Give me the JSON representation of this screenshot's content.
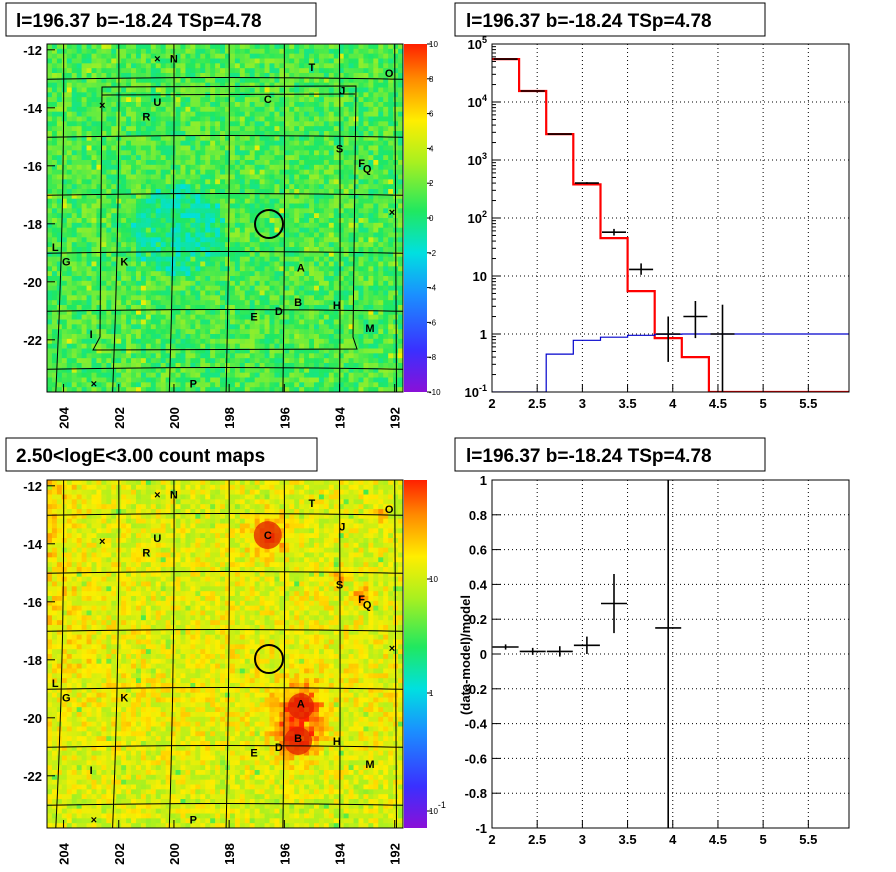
{
  "chart_data": [
    {
      "type": "heatmap",
      "title": "l=196.37 b=-18.24 TSp=4.78",
      "x_ticks": [
        "204",
        "202",
        "200",
        "198",
        "196",
        "194",
        "192"
      ],
      "y_ticks": [
        "-12",
        "-14",
        "-16",
        "-18",
        "-20",
        "-22"
      ],
      "colorbar_ticks": [
        "10",
        "8",
        "6",
        "4",
        "2",
        "0",
        "-2",
        "-4",
        "-6",
        "-8",
        "-10"
      ],
      "colorbar_range": [
        -10,
        10
      ],
      "sources": [
        {
          "label": "N",
          "l": 200.0,
          "b": -12.3
        },
        {
          "label": "T",
          "l": 195.0,
          "b": -12.6
        },
        {
          "label": "O",
          "l": 192.2,
          "b": -12.8
        },
        {
          "label": "J",
          "l": 193.9,
          "b": -13.4
        },
        {
          "label": "C",
          "l": 196.6,
          "b": -13.7
        },
        {
          "label": "U",
          "l": 200.6,
          "b": -13.8
        },
        {
          "label": "R",
          "l": 201.0,
          "b": -14.3
        },
        {
          "label": "S",
          "l": 194.0,
          "b": -15.4
        },
        {
          "label": "F",
          "l": 193.2,
          "b": -15.9
        },
        {
          "label": "Q",
          "l": 193.0,
          "b": -16.1
        },
        {
          "label": "L",
          "l": 204.3,
          "b": -18.8
        },
        {
          "label": "G",
          "l": 203.9,
          "b": -19.3
        },
        {
          "label": "K",
          "l": 201.8,
          "b": -19.3
        },
        {
          "label": "A",
          "l": 195.4,
          "b": -19.5
        },
        {
          "label": "B",
          "l": 195.5,
          "b": -20.7
        },
        {
          "label": "H",
          "l": 194.1,
          "b": -20.8
        },
        {
          "label": "D",
          "l": 196.2,
          "b": -21.0
        },
        {
          "label": "E",
          "l": 197.1,
          "b": -21.2
        },
        {
          "label": "M",
          "l": 192.9,
          "b": -21.6
        },
        {
          "label": "I",
          "l": 203.0,
          "b": -21.8
        },
        {
          "label": "P",
          "l": 199.3,
          "b": -23.5
        }
      ]
    },
    {
      "type": "line",
      "title": "l=196.37 b=-18.24 TSp=4.78",
      "x_ticks": [
        "2",
        "2.5",
        "3",
        "3.5",
        "4",
        "4.5",
        "5",
        "5.5"
      ],
      "y_ticks": [
        "10^-1",
        "1",
        "10",
        "10^2",
        "10^3",
        "10^4",
        "10^5"
      ],
      "xlim": [
        2,
        5.95
      ],
      "ylim": [
        0.1,
        100000
      ],
      "log_y": true,
      "grid": true,
      "bin_edges": [
        2.0,
        2.3,
        2.6,
        2.9,
        3.2,
        3.5,
        3.8,
        4.1,
        4.4,
        4.7,
        5.0,
        5.3,
        5.6,
        5.95
      ],
      "series": [
        {
          "color": "#ff0000",
          "values": [
            55000,
            15500,
            2800,
            380,
            45,
            5.5,
            0.85,
            0.4,
            0.1,
            0.1,
            0.1,
            0.1,
            0.1
          ]
        },
        {
          "color": "#0000cc",
          "values": [
            0.1,
            0.1,
            0.45,
            0.78,
            0.88,
            0.95,
            0.99,
            1.0,
            1.0,
            1.0,
            1.0,
            1.0,
            1.0
          ]
        }
      ],
      "data_points": [
        {
          "x": 2.15,
          "y": 55000,
          "err_lo": 54500,
          "err_hi": 55500
        },
        {
          "x": 2.45,
          "y": 15500,
          "err_lo": 15300,
          "err_hi": 15700
        },
        {
          "x": 2.75,
          "y": 2800,
          "err_lo": 2750,
          "err_hi": 2850
        },
        {
          "x": 3.05,
          "y": 400,
          "err_lo": 385,
          "err_hi": 415
        },
        {
          "x": 3.35,
          "y": 57,
          "err_lo": 50,
          "err_hi": 65
        },
        {
          "x": 3.65,
          "y": 13,
          "err_lo": 10.5,
          "err_hi": 16.5
        },
        {
          "x": 3.95,
          "y": 1.0,
          "err_lo": 0.33,
          "err_hi": 2.0
        },
        {
          "x": 4.25,
          "y": 2.0,
          "err_lo": 0.85,
          "err_hi": 3.7
        },
        {
          "x": 4.55,
          "y": 1.0,
          "err_lo": 0.1,
          "err_hi": 3.2
        }
      ]
    },
    {
      "type": "heatmap",
      "title": "2.50<logE<3.00 count maps",
      "x_ticks": [
        "204",
        "202",
        "200",
        "198",
        "196",
        "194",
        "192"
      ],
      "y_ticks": [
        "-12",
        "-14",
        "-16",
        "-18",
        "-20",
        "-22"
      ],
      "colorbar_ticks": [
        "10",
        "1",
        "10^-1"
      ],
      "log_z": true,
      "sources_same_as_top": true
    },
    {
      "type": "scatter",
      "title": "l=196.37 b=-18.24 TSp=4.78",
      "ylabel": "(data-model)/model",
      "x_ticks": [
        "2",
        "2.5",
        "3",
        "3.5",
        "4",
        "4.5",
        "5",
        "5.5"
      ],
      "y_ticks": [
        "1",
        "0.8",
        "0.6",
        "0.4",
        "0.2",
        "0",
        "-0.2",
        "-0.4",
        "-0.6",
        "-0.8",
        "-1"
      ],
      "xlim": [
        2,
        5.95
      ],
      "ylim": [
        -1,
        1
      ],
      "grid": true,
      "points": [
        {
          "x": 2.15,
          "y": 0.04,
          "err": 0.015
        },
        {
          "x": 2.45,
          "y": 0.015,
          "err": 0.02
        },
        {
          "x": 2.75,
          "y": 0.015,
          "err": 0.03
        },
        {
          "x": 3.05,
          "y": 0.05,
          "err": 0.05
        },
        {
          "x": 3.35,
          "y": 0.29,
          "err": 0.17
        },
        {
          "x": 3.95,
          "y": 0.15,
          "err": 1.2
        }
      ]
    }
  ]
}
